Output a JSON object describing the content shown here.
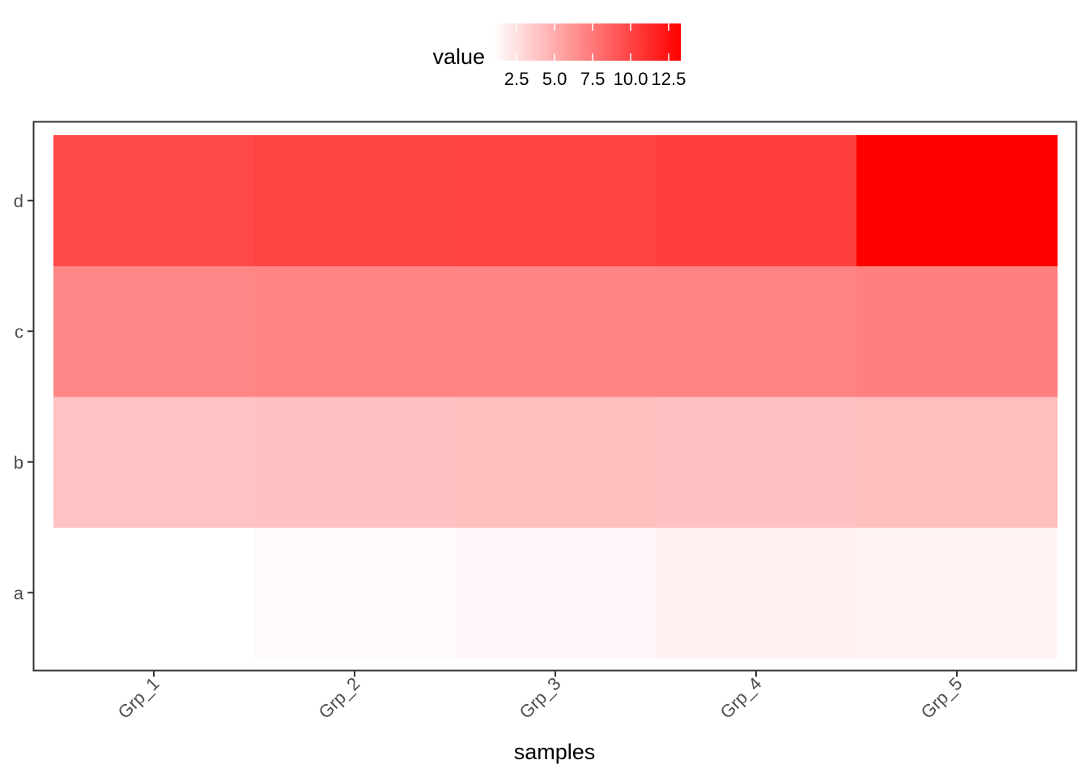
{
  "chart_data": {
    "type": "heatmap",
    "title": "",
    "xlabel": "samples",
    "ylabel": "",
    "x_categories": [
      "Grp_1",
      "Grp_2",
      "Grp_3",
      "Grp_4",
      "Grp_5"
    ],
    "y_categories": [
      "a",
      "b",
      "c",
      "d"
    ],
    "values": [
      [
        1.0,
        1.3,
        1.4,
        1.7,
        1.6
      ],
      [
        3.9,
        4.0,
        4.1,
        4.0,
        4.1
      ],
      [
        6.8,
        6.9,
        6.9,
        7.0,
        7.2
      ],
      [
        9.8,
        10.0,
        10.1,
        10.3,
        13.3
      ]
    ],
    "legend": {
      "title": "value",
      "position": "top",
      "breaks": [
        2.5,
        5.0,
        7.5,
        10.0,
        12.5
      ],
      "break_labels": [
        "2.5",
        "5.0",
        "7.5",
        "10.0",
        "12.5"
      ],
      "range": [
        1.0,
        13.3
      ],
      "low_color": "#ffffff",
      "high_color": "#ff0000"
    },
    "grid": false
  }
}
